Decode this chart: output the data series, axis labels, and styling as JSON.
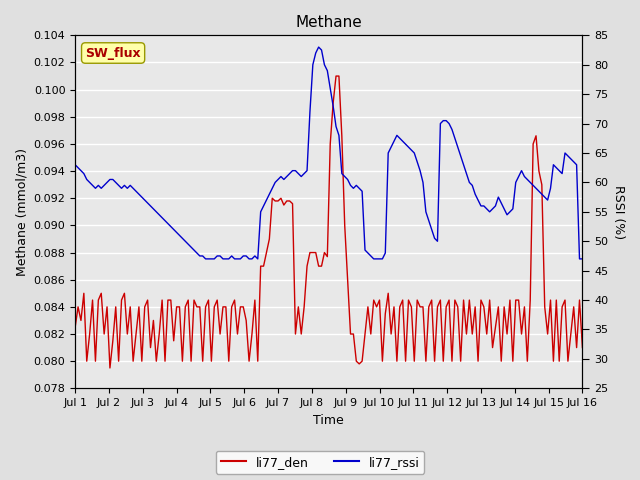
{
  "title": "Methane",
  "xlabel": "Time",
  "ylabel_left": "Methane (mmol/m3)",
  "ylabel_right": "RSSI (%)",
  "ylim_left": [
    0.078,
    0.104
  ],
  "ylim_right": [
    25,
    85
  ],
  "yticks_left": [
    0.078,
    0.08,
    0.082,
    0.084,
    0.086,
    0.088,
    0.09,
    0.092,
    0.094,
    0.096,
    0.098,
    0.1,
    0.102,
    0.104
  ],
  "yticks_right": [
    25,
    30,
    35,
    40,
    45,
    50,
    55,
    60,
    65,
    70,
    75,
    80,
    85
  ],
  "xtick_labels": [
    "Jul 1",
    "Jul 2",
    "Jul 3",
    "Jul 4",
    "Jul 5",
    "Jul 6",
    "Jul 7",
    "Jul 8",
    "Jul 9",
    "Jul 10",
    "Jul 11",
    "Jul 12",
    "Jul 13",
    "Jul 14",
    "Jul 15",
    "Jul 16"
  ],
  "color_red": "#cc0000",
  "color_blue": "#0000cc",
  "fig_bg_color": "#e0e0e0",
  "plot_bg_color": "#e8e8e8",
  "legend_label_red": "li77_den",
  "legend_label_blue": "li77_rssi",
  "sw_flux_text": "SW_flux",
  "sw_flux_bg": "#ffffaa",
  "sw_flux_border": "#999900",
  "sw_flux_color": "#aa0000",
  "line_width": 1.0,
  "n_days": 15,
  "red_data": [
    0.0825,
    0.084,
    0.083,
    0.085,
    0.08,
    0.082,
    0.0845,
    0.08,
    0.0845,
    0.085,
    0.082,
    0.084,
    0.0795,
    0.0815,
    0.084,
    0.08,
    0.0845,
    0.085,
    0.082,
    0.084,
    0.08,
    0.082,
    0.084,
    0.08,
    0.084,
    0.0845,
    0.081,
    0.083,
    0.08,
    0.082,
    0.0845,
    0.08,
    0.0845,
    0.0845,
    0.0815,
    0.084,
    0.084,
    0.08,
    0.084,
    0.0845,
    0.08,
    0.0845,
    0.084,
    0.084,
    0.08,
    0.084,
    0.0845,
    0.08,
    0.084,
    0.0845,
    0.082,
    0.084,
    0.084,
    0.08,
    0.084,
    0.0845,
    0.082,
    0.084,
    0.084,
    0.083,
    0.08,
    0.082,
    0.0845,
    0.08,
    0.087,
    0.087,
    0.088,
    0.089,
    0.092,
    0.0918,
    0.0918,
    0.092,
    0.0915,
    0.0918,
    0.0918,
    0.0916,
    0.082,
    0.084,
    0.082,
    0.084,
    0.087,
    0.088,
    0.088,
    0.088,
    0.087,
    0.087,
    0.088,
    0.0877,
    0.096,
    0.099,
    0.101,
    0.101,
    0.0966,
    0.09,
    0.086,
    0.082,
    0.082,
    0.08,
    0.0798,
    0.08,
    0.082,
    0.084,
    0.082,
    0.0845,
    0.084,
    0.0845,
    0.08,
    0.0835,
    0.085,
    0.082,
    0.084,
    0.08,
    0.084,
    0.0845,
    0.08,
    0.0845,
    0.084,
    0.08,
    0.0845,
    0.084,
    0.084,
    0.08,
    0.084,
    0.0845,
    0.08,
    0.084,
    0.0845,
    0.08,
    0.084,
    0.0845,
    0.08,
    0.0845,
    0.084,
    0.08,
    0.0845,
    0.082,
    0.0845,
    0.082,
    0.084,
    0.08,
    0.0845,
    0.084,
    0.082,
    0.0845,
    0.081,
    0.0825,
    0.084,
    0.08,
    0.084,
    0.082,
    0.0845,
    0.08,
    0.0845,
    0.0845,
    0.082,
    0.084,
    0.08,
    0.0845,
    0.096,
    0.0966,
    0.094,
    0.093,
    0.084,
    0.082,
    0.0845,
    0.08,
    0.0845,
    0.08,
    0.084,
    0.0845,
    0.08,
    0.082,
    0.084,
    0.081,
    0.0845,
    0.081
  ],
  "blue_data": [
    63.0,
    62.5,
    62.0,
    61.5,
    60.5,
    60.0,
    59.5,
    59.0,
    59.5,
    59.0,
    59.5,
    60.0,
    60.5,
    60.5,
    60.0,
    59.5,
    59.0,
    59.5,
    59.0,
    59.5,
    59.0,
    58.5,
    58.0,
    57.5,
    57.0,
    56.5,
    56.0,
    55.5,
    55.0,
    54.5,
    54.0,
    53.5,
    53.0,
    52.5,
    52.0,
    51.5,
    51.0,
    50.5,
    50.0,
    49.5,
    49.0,
    48.5,
    48.0,
    47.5,
    47.5,
    47.0,
    47.0,
    47.0,
    47.0,
    47.5,
    47.5,
    47.0,
    47.0,
    47.0,
    47.5,
    47.0,
    47.0,
    47.0,
    47.5,
    47.5,
    47.0,
    47.0,
    47.5,
    47.0,
    55.0,
    56.0,
    57.0,
    58.0,
    59.0,
    60.0,
    60.5,
    61.0,
    60.5,
    61.0,
    61.5,
    62.0,
    62.0,
    61.5,
    61.0,
    61.5,
    62.0,
    72.0,
    80.0,
    82.0,
    83.0,
    82.5,
    80.0,
    79.0,
    76.0,
    73.0,
    69.5,
    68.0,
    61.5,
    61.0,
    60.5,
    59.5,
    59.0,
    59.5,
    59.0,
    58.5,
    48.5,
    48.0,
    47.5,
    47.0,
    47.0,
    47.0,
    47.0,
    48.0,
    65.0,
    66.0,
    67.0,
    68.0,
    67.5,
    67.0,
    66.5,
    66.0,
    65.5,
    65.0,
    63.5,
    62.0,
    60.0,
    55.0,
    53.5,
    52.0,
    50.5,
    50.0,
    70.0,
    70.5,
    70.5,
    70.0,
    69.0,
    67.5,
    66.0,
    64.5,
    63.0,
    61.5,
    60.0,
    59.5,
    58.0,
    57.0,
    56.0,
    56.0,
    55.5,
    55.0,
    55.5,
    56.0,
    57.5,
    56.5,
    55.5,
    54.5,
    55.0,
    55.5,
    60.0,
    61.0,
    62.0,
    61.0,
    60.5,
    60.0,
    59.5,
    59.0,
    58.5,
    58.0,
    57.5,
    57.0,
    59.0,
    63.0,
    62.5,
    62.0,
    61.5,
    65.0,
    64.5,
    64.0,
    63.5,
    63.0,
    47.0,
    47.0
  ]
}
